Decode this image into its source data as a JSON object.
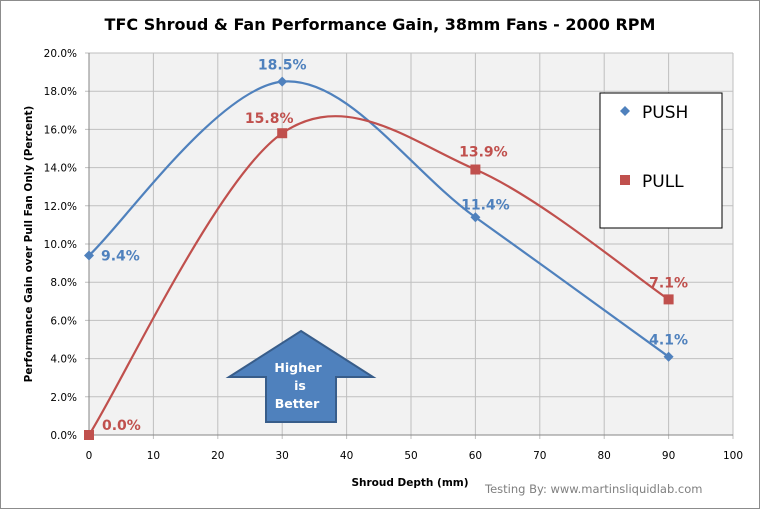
{
  "chart_data": {
    "type": "line",
    "title": "TFC Shroud & Fan Performance Gain, 38mm Fans - 2000 RPM",
    "xlabel": "Shroud Depth (mm)",
    "ylabel": "Performance Gain over Pull Fan Only (Percent)",
    "xlim": [
      0,
      100
    ],
    "ylim": [
      0,
      20
    ],
    "xticks": [
      0,
      10,
      20,
      30,
      40,
      50,
      60,
      70,
      80,
      90,
      100
    ],
    "yticks": [
      0,
      2,
      4,
      6,
      8,
      10,
      12,
      14,
      16,
      18,
      20
    ],
    "ytick_labels": [
      "0.0%",
      "2.0%",
      "4.0%",
      "6.0%",
      "8.0%",
      "10.0%",
      "12.0%",
      "14.0%",
      "16.0%",
      "18.0%",
      "20.0%"
    ],
    "grid": true,
    "smooth": true,
    "legend_position": "right",
    "series": [
      {
        "name": "PUSH",
        "color": "#4f81bd",
        "marker": "diamond",
        "x": [
          0,
          30,
          60,
          90
        ],
        "values": [
          9.4,
          18.5,
          11.4,
          4.1
        ],
        "labels": [
          "9.4%",
          "18.5%",
          "11.4%",
          "4.1%"
        ]
      },
      {
        "name": "PULL",
        "color": "#c0504d",
        "marker": "square",
        "x": [
          0,
          30,
          60,
          90
        ],
        "values": [
          0.0,
          15.8,
          13.9,
          7.1
        ],
        "labels": [
          "0.0%",
          "15.8%",
          "13.9%",
          "7.1%"
        ]
      }
    ],
    "annotations": {
      "arrow_lines": [
        "Higher",
        "is",
        "Better"
      ],
      "credit": "Testing By: www.martinsliquidlab.com"
    }
  }
}
